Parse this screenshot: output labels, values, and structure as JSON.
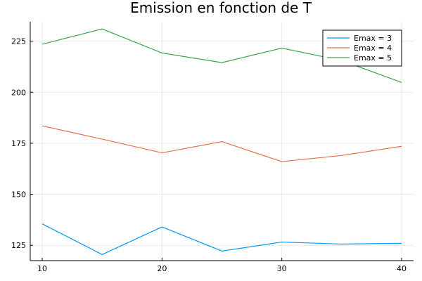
{
  "chart_data": {
    "type": "line",
    "title": "Emission en fonction de T",
    "xlabel": "",
    "ylabel": "",
    "x": [
      10,
      15,
      20,
      25,
      30,
      35,
      40
    ],
    "xlim": [
      9,
      41
    ],
    "ylim": [
      117.5,
      234.5
    ],
    "xticks": [
      10,
      20,
      30,
      40
    ],
    "yticks": [
      125,
      150,
      175,
      200,
      225
    ],
    "grid": true,
    "legend_position": "top-right",
    "series": [
      {
        "name": "Emax = 3",
        "color": "#009AFA",
        "values": [
          135.5,
          120.5,
          134,
          122.2,
          126.6,
          125.6,
          126
        ]
      },
      {
        "name": "Emax = 4",
        "color": "#E26F46",
        "values": [
          183.5,
          177,
          170.3,
          175.8,
          166,
          169,
          173.5
        ]
      },
      {
        "name": "Emax = 5",
        "color": "#3DA44D",
        "values": [
          223.5,
          231,
          219.2,
          214.5,
          221.6,
          215.5,
          204.8
        ]
      }
    ]
  }
}
